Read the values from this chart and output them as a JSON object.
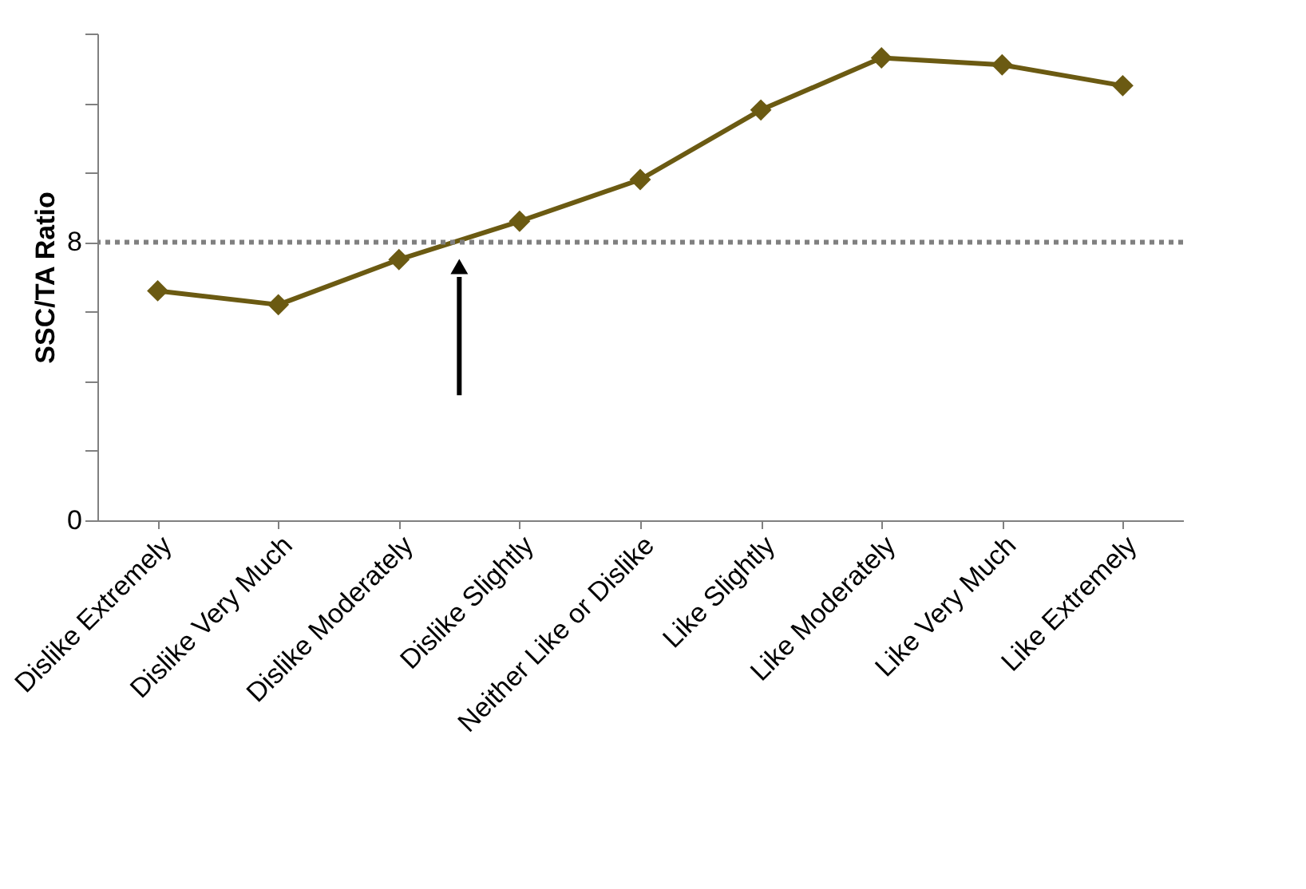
{
  "chart_data": {
    "type": "line",
    "ylabel": "SSC/TA Ratio",
    "categories": [
      "Dislike Extremely",
      "Dislike Very Much",
      "Dislike Moderately",
      "Dislike Slightly",
      "Neither Like or Dislike",
      "Like Slightly",
      "Like Moderately",
      "Like Very Much",
      "Like Extremely"
    ],
    "series": [
      {
        "color": "#6b5a12",
        "values": [
          6.6,
          6.2,
          7.5,
          8.6,
          9.8,
          11.8,
          13.3,
          13.1,
          12.5
        ]
      }
    ],
    "ylim": [
      0,
      14
    ],
    "yticks": [
      0,
      {
        "value": 2,
        "label": null
      },
      {
        "value": 4,
        "label": null
      },
      {
        "value": 6,
        "label": null
      },
      8,
      {
        "value": 10,
        "label": null
      },
      {
        "value": 12,
        "label": null
      },
      {
        "value": 14,
        "label": null
      }
    ],
    "ref_lines": [
      {
        "axis": "y",
        "value": 8,
        "color": "#808080",
        "line_style": "dotted"
      }
    ],
    "marker": "diamond",
    "line_style": "solid",
    "grid": false
  }
}
